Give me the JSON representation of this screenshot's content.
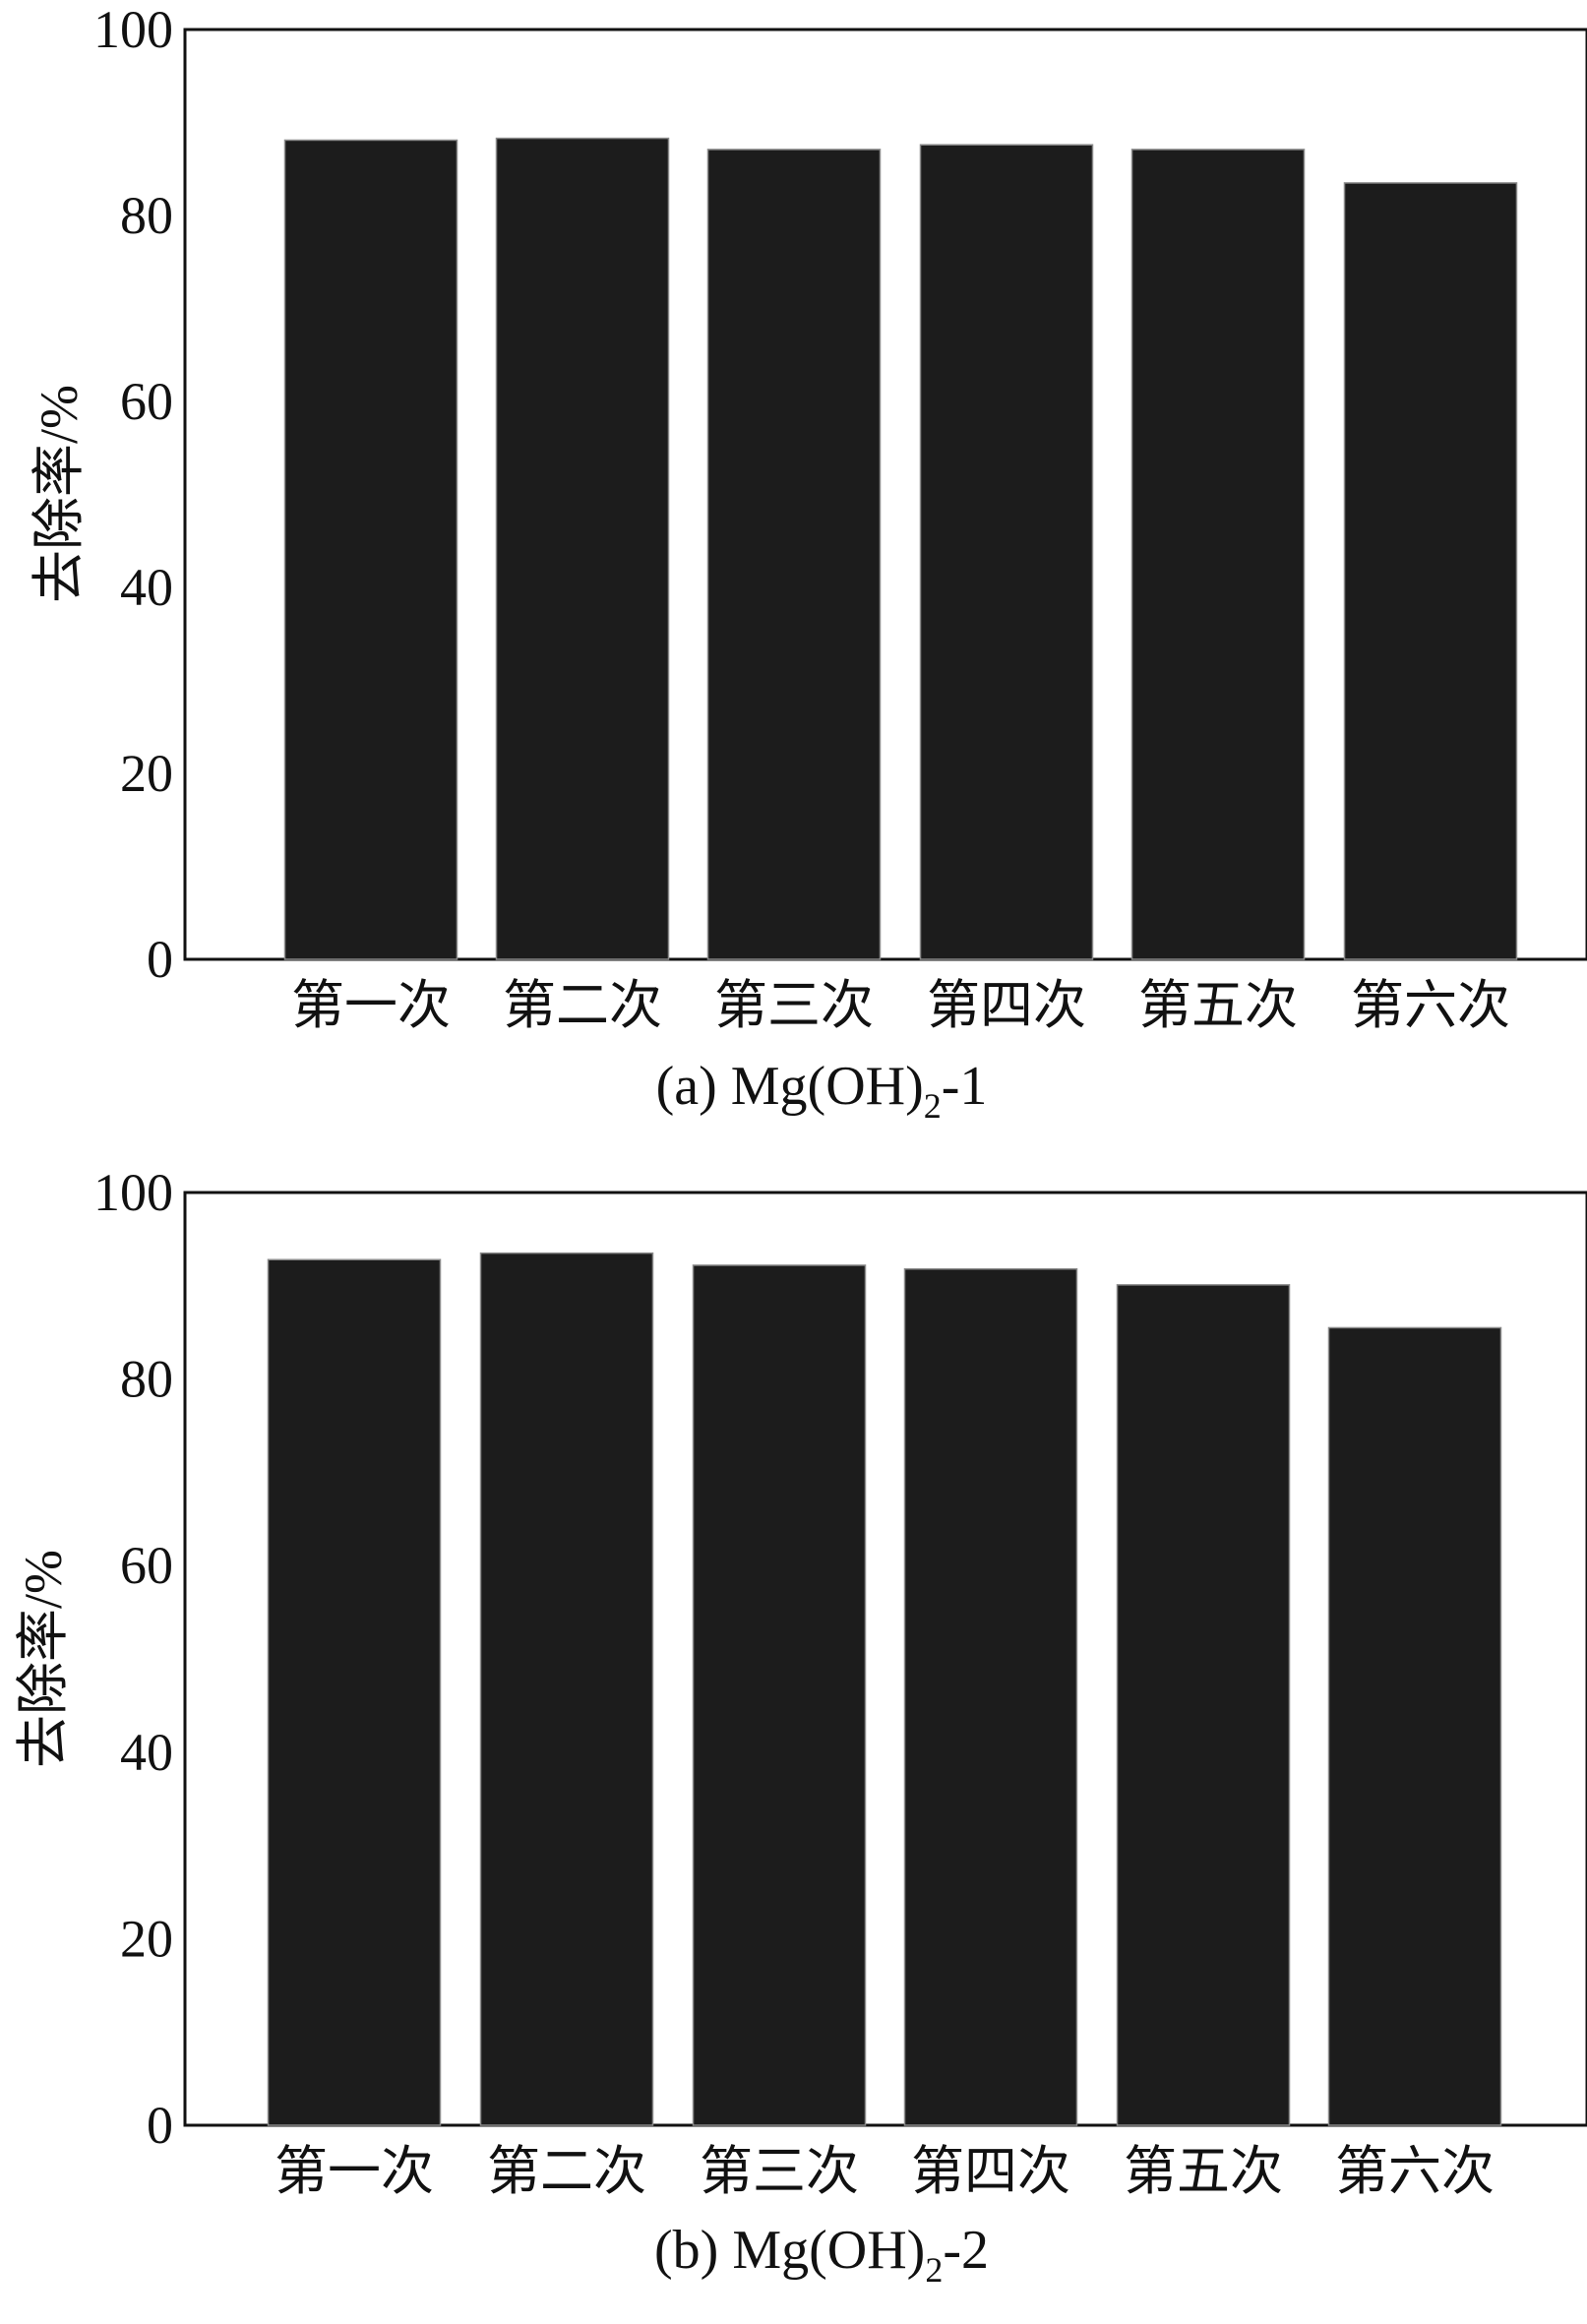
{
  "chart_data": [
    {
      "type": "bar",
      "title": "",
      "caption": {
        "prefix": "(a) Mg(OH)",
        "subscript": "2",
        "suffix": "-1"
      },
      "xlabel": "",
      "ylabel": "去除率/%",
      "ylim": [
        0,
        100
      ],
      "yticks": [
        "0",
        "20",
        "40",
        "60",
        "80",
        "100"
      ],
      "categories": [
        "第一次",
        "第二次",
        "第三次",
        "第四次",
        "第五次",
        "第六次"
      ],
      "values": [
        88.1,
        88.3,
        87.1,
        87.6,
        87.1,
        83.5
      ],
      "bar_color": "#1c1c1c",
      "grid": false,
      "legend": "none"
    },
    {
      "type": "bar",
      "title": "",
      "caption": {
        "prefix": "(b) Mg(OH)",
        "subscript": "2",
        "suffix": "-2"
      },
      "xlabel": "",
      "ylabel": "去除率/%",
      "ylim": [
        0,
        100
      ],
      "yticks": [
        "0",
        "20",
        "40",
        "60",
        "80",
        "100"
      ],
      "categories": [
        "第一次",
        "第二次",
        "第三次",
        "第四次",
        "第五次",
        "第六次"
      ],
      "values": [
        92.8,
        93.5,
        92.2,
        91.8,
        90.1,
        85.5
      ],
      "bar_color": "#1c1c1c",
      "grid": false,
      "legend": "none"
    }
  ]
}
